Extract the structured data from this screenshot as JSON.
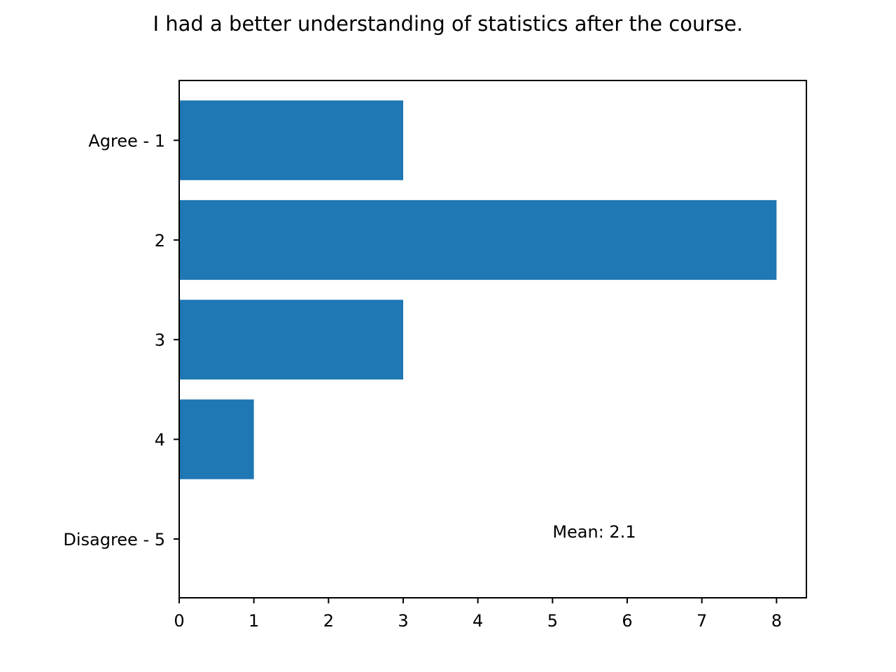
{
  "chart_data": {
    "type": "bar",
    "orientation": "horizontal",
    "title": "I had a better understanding of statistics after the course.",
    "xlabel": "",
    "ylabel": "",
    "categories": [
      "Agree - 1",
      "2",
      "3",
      "4",
      "Disagree - 5"
    ],
    "values": [
      3,
      8,
      3,
      1,
      0
    ],
    "xlim": [
      0,
      8.4
    ],
    "xticks": [
      "0",
      "1",
      "2",
      "3",
      "4",
      "5",
      "6",
      "7",
      "8"
    ],
    "grid": false,
    "legend": "none",
    "bar_color": "#1f77b4",
    "annotation": {
      "text": "Mean: 2.1",
      "x": 5,
      "y_category_index": 4
    }
  }
}
